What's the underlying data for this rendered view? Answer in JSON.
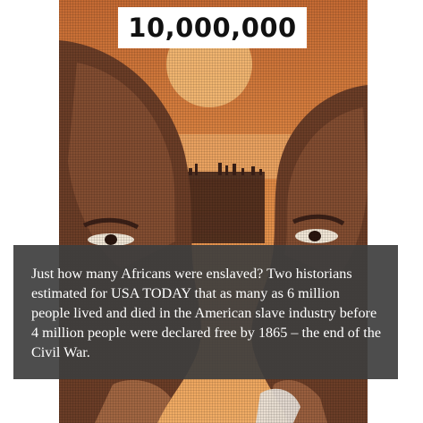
{
  "headline": {
    "figure": "10,000,000"
  },
  "caption": {
    "text": "Just how many Africans were enslaved? Two historians estimated for USA TODAY that as many as 6 million people lived and died in the American slave industry before 4 million people were declared free by 1865 – the end of the Civil War."
  },
  "illustration": {
    "sky_top": "#c46a33",
    "sky_mid": "#e08a45",
    "sky_low": "#f1ad66",
    "sun": "#f6c07a",
    "skin_dark": "#6b3d27",
    "skin_mid": "#8c5436",
    "skin_light": "#b8774e",
    "crowd": "#3b2017"
  }
}
